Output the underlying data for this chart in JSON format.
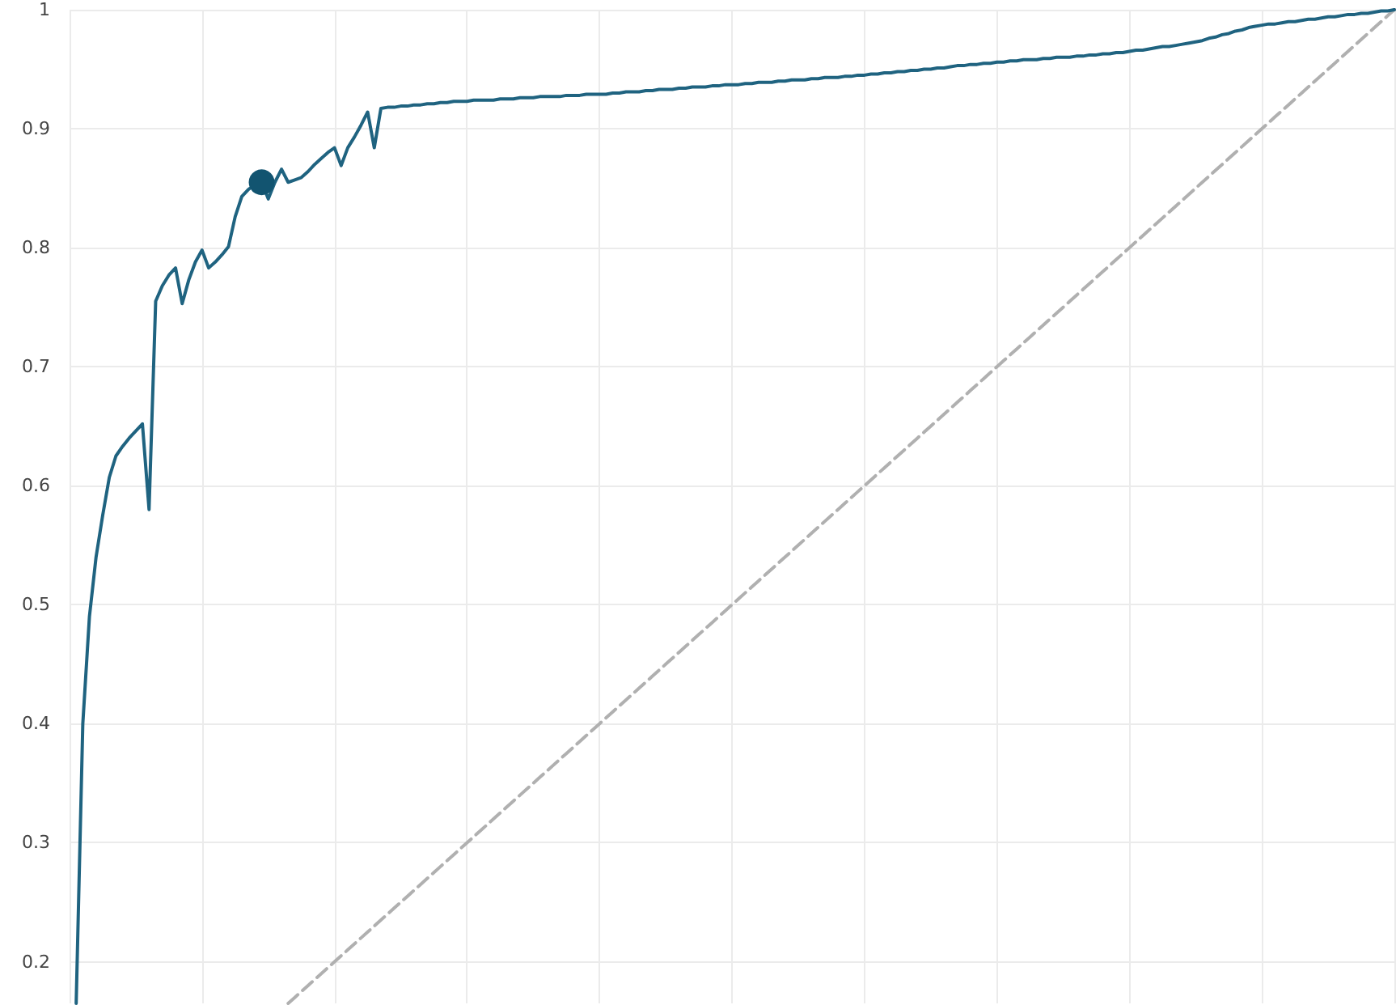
{
  "chart_data": {
    "type": "line",
    "ylim": [
      0.165,
      1
    ],
    "categories": [
      null,
      null,
      null,
      null,
      null,
      null,
      null,
      null,
      null,
      null,
      null,
      null,
      null,
      null,
      null,
      null,
      null,
      null,
      null,
      null,
      null,
      null,
      null,
      null,
      null,
      null,
      null,
      null,
      null,
      null,
      null,
      null,
      null,
      null,
      null,
      null,
      null,
      null,
      null,
      null,
      null,
      null,
      null,
      null,
      null,
      null,
      null,
      null,
      null,
      null,
      null,
      null,
      null,
      null,
      null,
      null,
      null,
      null,
      null,
      null,
      null,
      null,
      null,
      null,
      null,
      null,
      null,
      null,
      null,
      null,
      null,
      null,
      null,
      null,
      null,
      null,
      null,
      null,
      null,
      null,
      null,
      null,
      null,
      null,
      null,
      null,
      null,
      null,
      null,
      null,
      null,
      null,
      null,
      null,
      null,
      null,
      null,
      null,
      null,
      null,
      null,
      null,
      null,
      null,
      null,
      null,
      null,
      null,
      null,
      null,
      null,
      null,
      null,
      null,
      null,
      null,
      null,
      null,
      null,
      null,
      null,
      null,
      null,
      null,
      null,
      null,
      null,
      null,
      null,
      null,
      null,
      null,
      null,
      null,
      null,
      null,
      null,
      null,
      null,
      null,
      null,
      null,
      null,
      null,
      null,
      null,
      null,
      null,
      null,
      null,
      null,
      null,
      null,
      null,
      null,
      null,
      null,
      null,
      null,
      null,
      null,
      null,
      null,
      null,
      null,
      null,
      null,
      null,
      null,
      null,
      null,
      null,
      null,
      null,
      null,
      null,
      null,
      null,
      null,
      null,
      null,
      null,
      null,
      null,
      null,
      null,
      null,
      null,
      null,
      null,
      null,
      null,
      null,
      null,
      null,
      null,
      null,
      null,
      null,
      null,
      null
    ],
    "yticks": [
      0.2,
      0.3,
      0.4,
      0.5,
      0.6,
      0.7,
      0.8,
      0.9,
      1
    ],
    "grid": true,
    "tick_labels": "y",
    "series": [
      {
        "color": "#1f6380",
        "marker": "none",
        "line_style": "solid",
        "values": [
          null,
          0.165,
          0.4,
          0.49,
          0.54,
          0.575,
          0.607,
          0.625,
          0.633,
          0.64,
          0.646,
          0.652,
          0.58,
          0.755,
          0.768,
          0.777,
          0.783,
          0.753,
          0.773,
          0.788,
          0.798,
          0.783,
          0.788,
          0.794,
          0.801,
          0.826,
          0.843,
          0.849,
          0.853,
          0.855,
          0.841,
          0.855,
          0.866,
          0.855,
          0.857,
          0.859,
          0.864,
          0.87,
          0.875,
          0.88,
          0.884,
          0.869,
          0.884,
          0.893,
          0.903,
          0.914,
          0.884,
          0.917,
          0.918,
          0.918,
          0.919,
          0.919,
          0.92,
          0.92,
          0.921,
          0.921,
          0.922,
          0.922,
          0.923,
          0.923,
          0.923,
          0.924,
          0.924,
          0.924,
          0.924,
          0.925,
          0.925,
          0.925,
          0.926,
          0.926,
          0.926,
          0.927,
          0.927,
          0.927,
          0.927,
          0.928,
          0.928,
          0.928,
          0.929,
          0.929,
          0.929,
          0.929,
          0.93,
          0.93,
          0.931,
          0.931,
          0.931,
          0.932,
          0.932,
          0.933,
          0.933,
          0.933,
          0.934,
          0.934,
          0.935,
          0.935,
          0.935,
          0.936,
          0.936,
          0.937,
          0.937,
          0.937,
          0.938,
          0.938,
          0.939,
          0.939,
          0.939,
          0.94,
          0.94,
          0.941,
          0.941,
          0.941,
          0.942,
          0.942,
          0.943,
          0.943,
          0.943,
          0.944,
          0.944,
          0.945,
          0.945,
          0.946,
          0.946,
          0.947,
          0.947,
          0.948,
          0.948,
          0.949,
          0.949,
          0.95,
          0.95,
          0.951,
          0.951,
          0.952,
          0.953,
          0.953,
          0.954,
          0.954,
          0.955,
          0.955,
          0.956,
          0.956,
          0.957,
          0.957,
          0.958,
          0.958,
          0.958,
          0.959,
          0.959,
          0.96,
          0.96,
          0.96,
          0.961,
          0.961,
          0.962,
          0.962,
          0.963,
          0.963,
          0.964,
          0.964,
          0.965,
          0.966,
          0.966,
          0.967,
          0.968,
          0.969,
          0.969,
          0.97,
          0.971,
          0.972,
          0.973,
          0.974,
          0.976,
          0.977,
          0.979,
          0.98,
          0.982,
          0.983,
          0.985,
          0.986,
          0.987,
          0.988,
          0.988,
          0.989,
          0.99,
          0.99,
          0.991,
          0.992,
          0.992,
          0.993,
          0.994,
          0.994,
          0.995,
          0.996,
          0.996,
          0.997,
          0.997,
          0.998,
          0.999,
          0.999,
          1
        ]
      },
      {
        "type": "scatter",
        "color": "#125470",
        "marker": "circle",
        "values": [
          null,
          null,
          null,
          null,
          null,
          null,
          null,
          null,
          null,
          null,
          null,
          null,
          null,
          null,
          null,
          null,
          null,
          null,
          null,
          null,
          null,
          null,
          null,
          null,
          null,
          null,
          null,
          null,
          null,
          0.855,
          null,
          null,
          null,
          null,
          null,
          null,
          null,
          null,
          null,
          null,
          null,
          null,
          null,
          null,
          null,
          null,
          null,
          null,
          null,
          null,
          null,
          null,
          null,
          null,
          null,
          null,
          null,
          null,
          null,
          null,
          null,
          null,
          null,
          null,
          null,
          null,
          null,
          null,
          null,
          null,
          null,
          null,
          null,
          null,
          null,
          null,
          null,
          null,
          null,
          null,
          null,
          null,
          null,
          null,
          null,
          null,
          null,
          null,
          null,
          null,
          null,
          null,
          null,
          null,
          null,
          null,
          null,
          null,
          null,
          null,
          null,
          null,
          null,
          null,
          null,
          null,
          null,
          null,
          null,
          null,
          null,
          null,
          null,
          null,
          null,
          null,
          null,
          null,
          null,
          null,
          null,
          null,
          null,
          null,
          null,
          null,
          null,
          null,
          null,
          null,
          null,
          null,
          null,
          null,
          null,
          null,
          null,
          null,
          null,
          null,
          null,
          null,
          null,
          null,
          null,
          null,
          null,
          null,
          null,
          null,
          null,
          null,
          null,
          null,
          null,
          null,
          null,
          null,
          null,
          null,
          null,
          null,
          null,
          null,
          null,
          null,
          null,
          null,
          null,
          null,
          null,
          null,
          null,
          null,
          null,
          null,
          null,
          null,
          null,
          null,
          null,
          null,
          null,
          null,
          null,
          null,
          null,
          null,
          null,
          null,
          null,
          null,
          null,
          null,
          null,
          null,
          null,
          null,
          null,
          null,
          null
        ]
      },
      {
        "color": "#b0b0b0",
        "marker": "none",
        "line_style": "dashed",
        "values": [
          null,
          null,
          null,
          null,
          null,
          null,
          null,
          null,
          null,
          null,
          null,
          null,
          null,
          null,
          null,
          null,
          null,
          null,
          null,
          null,
          null,
          null,
          null,
          null,
          null,
          null,
          null,
          null,
          null,
          null,
          null,
          null,
          null,
          0.165,
          0.17,
          0.175,
          0.18,
          0.185,
          0.19,
          0.195,
          0.2,
          0.205,
          0.21,
          0.215,
          0.22,
          0.225,
          0.23,
          0.235,
          0.24,
          0.245,
          0.25,
          0.255,
          0.26,
          0.265,
          0.27,
          0.275,
          0.28,
          0.285,
          0.29,
          0.295,
          0.3,
          0.305,
          0.31,
          0.315,
          0.32,
          0.325,
          0.33,
          0.335,
          0.34,
          0.345,
          0.35,
          0.355,
          0.36,
          0.365,
          0.37,
          0.375,
          0.38,
          0.385,
          0.39,
          0.395,
          0.4,
          0.405,
          0.41,
          0.415,
          0.42,
          0.425,
          0.43,
          0.435,
          0.44,
          0.445,
          0.45,
          0.455,
          0.46,
          0.465,
          0.47,
          0.475,
          0.48,
          0.485,
          0.49,
          0.495,
          0.5,
          0.505,
          0.51,
          0.515,
          0.52,
          0.525,
          0.53,
          0.535,
          0.54,
          0.545,
          0.55,
          0.555,
          0.56,
          0.565,
          0.57,
          0.575,
          0.58,
          0.585,
          0.59,
          0.595,
          0.6,
          0.605,
          0.61,
          0.615,
          0.62,
          0.625,
          0.63,
          0.635,
          0.64,
          0.645,
          0.65,
          0.655,
          0.66,
          0.665,
          0.67,
          0.675,
          0.68,
          0.685,
          0.69,
          0.695,
          0.7,
          0.705,
          0.71,
          0.715,
          0.72,
          0.725,
          0.73,
          0.735,
          0.74,
          0.745,
          0.75,
          0.755,
          0.76,
          0.765,
          0.77,
          0.775,
          0.78,
          0.785,
          0.79,
          0.795,
          0.8,
          0.805,
          0.81,
          0.815,
          0.82,
          0.825,
          0.83,
          0.835,
          0.84,
          0.845,
          0.85,
          0.855,
          0.86,
          0.865,
          0.87,
          0.875,
          0.88,
          0.885,
          0.89,
          0.895,
          0.9,
          0.905,
          0.91,
          0.915,
          0.92,
          0.925,
          0.93,
          0.935,
          0.94,
          0.945,
          0.95,
          0.955,
          0.96,
          0.965,
          0.97,
          0.975,
          0.98,
          0.985,
          0.99,
          0.995,
          1
        ]
      }
    ]
  }
}
